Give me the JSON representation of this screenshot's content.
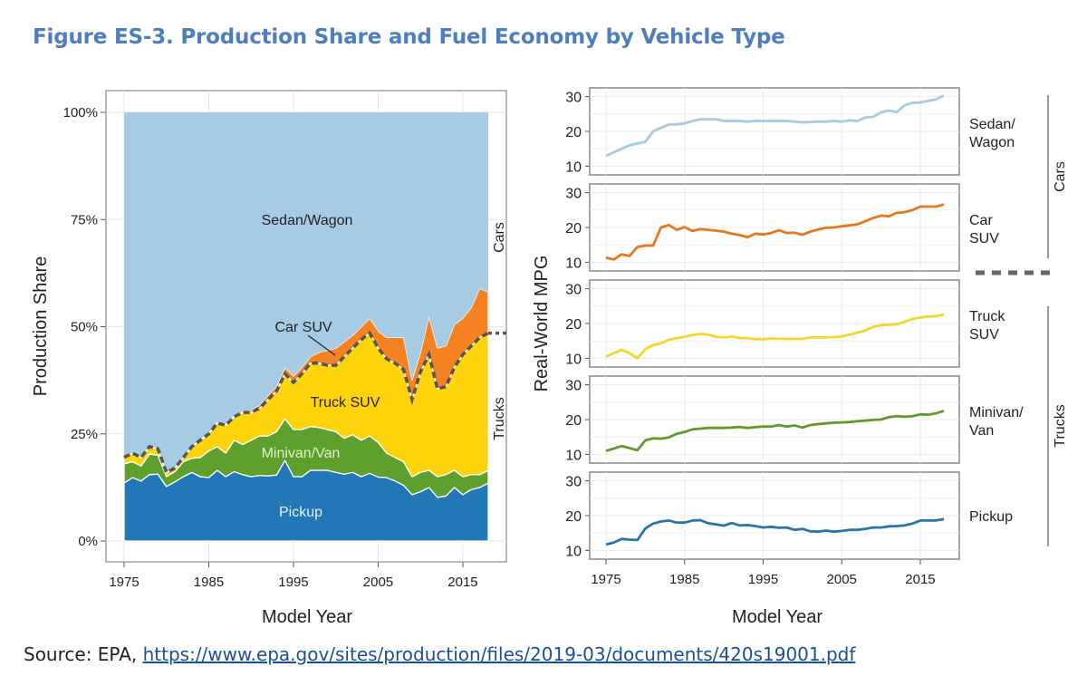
{
  "title": "Figure ES-3. Production Share and Fuel Economy by Vehicle Type",
  "source": {
    "prefix": "Source: EPA, ",
    "link": "https://www.epa.gov/sites/production/files/2019-03/documents/420s19001.pdf"
  },
  "chart_data": [
    {
      "type": "area",
      "stacked": true,
      "xlabel": "Model Year",
      "ylabel": "Production Share",
      "xlim": [
        1975,
        2018
      ],
      "ylim": [
        0,
        100
      ],
      "xticks": [
        "1975",
        "1985",
        "1995",
        "2005",
        "2015"
      ],
      "yticks": [
        "0%",
        "25%",
        "50%",
        "75%",
        "100%"
      ],
      "grid": true,
      "group_labels": {
        "cars": "Cars",
        "trucks": "Trucks"
      },
      "x_start": 1975,
      "series": [
        {
          "name": "Pickup",
          "color": "#2277b6",
          "label_color": "#e6f1fa",
          "values": [
            13.5,
            14.8,
            14,
            15.5,
            15.6,
            12.7,
            13.8,
            15,
            16,
            15,
            14.8,
            16.5,
            15,
            16.2,
            15.5,
            15,
            15.3,
            15.2,
            15.4,
            18.8,
            15,
            15,
            16.5,
            16.5,
            16.5,
            16,
            15.6,
            16,
            15,
            15.8,
            14.9,
            14.8,
            14,
            13,
            10.8,
            11.5,
            12.5,
            10.2,
            10.5,
            12.5,
            10.8,
            12,
            12.5,
            13.5
          ]
        },
        {
          "name": "Minivan/Van",
          "color": "#5e9f2e",
          "label_color": "#dff2c8",
          "values": [
            4.5,
            3.7,
            3.5,
            4.8,
            4.4,
            2.3,
            2.4,
            3.5,
            3.3,
            4.5,
            6.2,
            5.5,
            5.5,
            7.3,
            7,
            8.5,
            9.2,
            9.3,
            10.1,
            9.7,
            11,
            11,
            10.2,
            10,
            9.5,
            9.5,
            8.4,
            8.8,
            8.5,
            8.7,
            8.1,
            5.7,
            5.5,
            5.5,
            4.2,
            4.5,
            4,
            4.8,
            5,
            4,
            4.2,
            3.5,
            3,
            3
          ]
        },
        {
          "name": "Truck SUV",
          "color": "#fdd40b",
          "label_color": "#222222",
          "values": [
            1.5,
            2,
            2,
            1.7,
            1.5,
            1,
            0.8,
            1,
            2.7,
            4,
            4,
            5.5,
            6.5,
            5.5,
            7.5,
            6.5,
            6.5,
            8.5,
            9.5,
            10.5,
            11,
            13,
            14.8,
            15,
            15,
            15.5,
            19,
            20.2,
            23.5,
            24,
            22,
            22,
            22,
            21.5,
            18,
            23.5,
            27,
            20.5,
            20.5,
            24,
            28.5,
            30,
            32,
            32
          ]
        },
        {
          "name": "Car SUV",
          "color": "#f58220",
          "label_color": "#222222",
          "values": [
            0.1,
            0.1,
            0.1,
            0.1,
            0.1,
            0.1,
            0.1,
            0.1,
            0.2,
            0.3,
            0.3,
            0.3,
            0.4,
            0.3,
            0.3,
            0.5,
            0.8,
            1,
            1,
            1.5,
            1.5,
            1.5,
            1.5,
            2.5,
            3.5,
            4,
            3.5,
            3,
            3,
            3.5,
            4,
            5,
            6,
            7.5,
            4.5,
            4.5,
            9,
            9.5,
            9.5,
            10,
            8.5,
            9,
            11.5,
            9.5
          ]
        },
        {
          "name": "Sedan/Wagon",
          "color": "#a6cbe2",
          "label_color": "#222222",
          "values": [
            80.4,
            79.4,
            80.4,
            77.9,
            78.4,
            83.9,
            82.9,
            80.4,
            77.8,
            76.2,
            74.7,
            72.2,
            72.6,
            70.7,
            69.7,
            69.5,
            68.2,
            66,
            64,
            59.5,
            61.5,
            59.5,
            57,
            56,
            55.5,
            55,
            53.5,
            52,
            50,
            48,
            51,
            52.5,
            52.5,
            52.5,
            62.5,
            56,
            47.5,
            55,
            54.5,
            49.5,
            48,
            45.5,
            41,
            42
          ]
        }
      ]
    },
    {
      "type": "line",
      "faceted": true,
      "xlabel": "Model Year",
      "ylabel": "Real-World MPG",
      "xlim": [
        1975,
        2018
      ],
      "ylim": [
        7.5,
        32.5
      ],
      "xticks": [
        "1975",
        "1985",
        "1995",
        "2005",
        "2015"
      ],
      "yticks": [
        "10",
        "20",
        "30"
      ],
      "grid": true,
      "group_labels": {
        "cars": "Cars",
        "trucks": "Trucks"
      },
      "x_start": 1975,
      "panels": [
        {
          "name": "Sedan/",
          "name2": "Wagon",
          "color": "#a6cbe2",
          "values": [
            13,
            14,
            15,
            16,
            16.5,
            17,
            20,
            21,
            22,
            22,
            22.3,
            23,
            23.5,
            23.5,
            23.5,
            23,
            23,
            23,
            22.8,
            23,
            23,
            23,
            23,
            23,
            22.8,
            22.6,
            22.7,
            22.8,
            22.8,
            23,
            22.8,
            23.2,
            23,
            24,
            24.2,
            25.5,
            26,
            25.5,
            27.5,
            28.2,
            28.3,
            28.8,
            29.2,
            30.3
          ]
        },
        {
          "name": "Car",
          "name2": "SUV",
          "color": "#e8761c",
          "values": [
            11.3,
            10.8,
            12.3,
            11.8,
            14.4,
            14.8,
            14.8,
            20,
            20.7,
            19.3,
            20.1,
            19,
            19.5,
            19.3,
            19.1,
            18.8,
            18.2,
            17.8,
            17.2,
            18.2,
            18,
            18.4,
            19.2,
            18.4,
            18.5,
            17.9,
            18.8,
            19.4,
            19.9,
            20,
            20.3,
            20.6,
            20.9,
            21.8,
            22.7,
            23.4,
            23.2,
            24.2,
            24.4,
            25,
            26,
            26,
            26,
            26.6
          ]
        },
        {
          "name": "Truck",
          "name2": "SUV",
          "color": "#f5d62a",
          "values": [
            10.5,
            11.5,
            12.4,
            11.5,
            10,
            12.6,
            13.8,
            14.3,
            15.3,
            15.8,
            16.2,
            16.7,
            17,
            16.8,
            16.2,
            16,
            16.3,
            15.8,
            15.8,
            15.5,
            15.5,
            15.7,
            15.6,
            15.6,
            15.6,
            15.6,
            16,
            16,
            16,
            16.1,
            16.3,
            16.8,
            17.4,
            18,
            19,
            19.5,
            19.6,
            19.8,
            20.5,
            21.3,
            21.7,
            22,
            22.1,
            22.6
          ]
        },
        {
          "name": "Minivan/",
          "name2": "Van",
          "color": "#5e9a2c",
          "values": [
            11,
            11.7,
            12.4,
            11.8,
            11.2,
            14,
            14.6,
            14.5,
            14.9,
            15.9,
            16.4,
            17.2,
            17.4,
            17.6,
            17.6,
            17.6,
            17.7,
            17.9,
            17.6,
            17.8,
            18,
            18,
            18.4,
            18,
            18.3,
            17.7,
            18.4,
            18.7,
            18.9,
            19.1,
            19.2,
            19.3,
            19.5,
            19.7,
            19.9,
            20,
            20.7,
            21,
            20.8,
            21,
            21.5,
            21.4,
            21.8,
            22.5
          ]
        },
        {
          "name": "Pickup",
          "name2": "",
          "color": "#2a74a8",
          "values": [
            11.7,
            12.3,
            13.3,
            13.1,
            13,
            16.3,
            17.7,
            18.3,
            18.6,
            18,
            18,
            18.6,
            18.7,
            17.8,
            17.5,
            17.1,
            17.9,
            17.2,
            17.3,
            17,
            16.6,
            16.8,
            16.5,
            16.6,
            15.9,
            16.2,
            15.5,
            15.4,
            15.7,
            15.4,
            15.6,
            15.9,
            15.9,
            16.2,
            16.6,
            16.6,
            16.9,
            17,
            17.2,
            17.7,
            18.6,
            18.6,
            18.6,
            19
          ]
        }
      ]
    }
  ]
}
